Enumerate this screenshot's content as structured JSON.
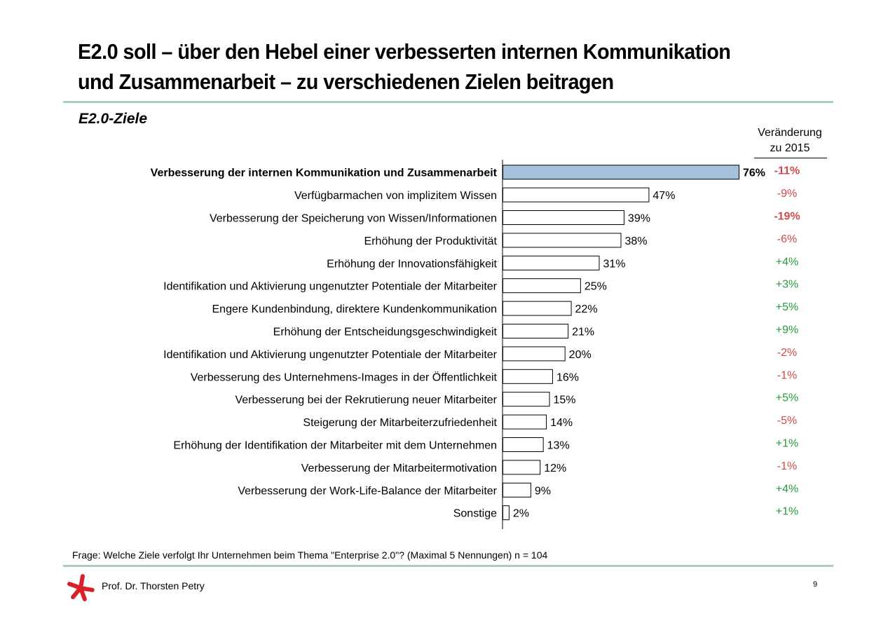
{
  "slide": {
    "title_line1": "E2.0 soll – über den Hebel einer verbesserten internen Kommunikation",
    "title_line2": "und Zusammenarbeit – zu verschiedenen Zielen beitragen",
    "subtitle": "E2.0-Ziele",
    "change_header_line1": "Veränderung",
    "change_header_line2": "zu 2015",
    "question": "Frage: Welche Ziele verfolgt Ihr Unternehmen beim Thema \"Enterprise 2.0\"?  (Maximal 5 Nennungen)  n = 104",
    "author": "Prof. Dr. Thorsten Petry",
    "page_number": "9"
  },
  "colors": {
    "highlight_bar": "#a4c2dc",
    "bar_fill": "#ffffff",
    "rule": "#a9cdbf",
    "negative": "#d0494b",
    "positive": "#2a9a3e",
    "logo": "#d9202a"
  },
  "chart_data": {
    "type": "bar",
    "orientation": "horizontal",
    "title": "E2.0-Ziele",
    "unit": "%",
    "categories": [
      "Verbesserung der internen Kommunikation und Zusammenarbeit",
      "Verfügbarmachen von implizitem Wissen",
      "Verbesserung der Speicherung von Wissen/Informationen",
      "Erhöhung der Produktivität",
      "Erhöhung der Innovationsfähigkeit",
      "Identifikation und Aktivierung ungenutzter Potentiale der Mitarbeiter",
      "Engere Kundenbindung, direktere Kundenkommunikation",
      "Erhöhung der Entscheidungsgeschwindigkeit",
      "Identifikation und Aktivierung ungenutzter Potentiale der Mitarbeiter",
      "Verbesserung des Unternehmens-Images in der Öffentlichkeit",
      "Verbesserung bei der Rekrutierung neuer Mitarbeiter",
      "Steigerung der Mitarbeiterzufriedenheit",
      "Erhöhung der Identifikation der Mitarbeiter mit dem Unternehmen",
      "Verbesserung der Mitarbeitermotivation",
      "Verbesserung der Work-Life-Balance der Mitarbeiter",
      "Sonstige"
    ],
    "values": [
      76,
      47,
      39,
      38,
      31,
      25,
      22,
      21,
      20,
      16,
      15,
      14,
      13,
      12,
      9,
      2
    ],
    "value_labels": [
      "76%",
      "47%",
      "39%",
      "38%",
      "31%",
      "25%",
      "22%",
      "21%",
      "20%",
      "16%",
      "15%",
      "14%",
      "13%",
      "12%",
      "9%",
      "2%"
    ],
    "change_labels": [
      "-11%",
      "-9%",
      "-19%",
      "-6%",
      "+4%",
      "+3%",
      "+5%",
      "+9%",
      "-2%",
      "-1%",
      "+5%",
      "-5%",
      "+1%",
      "-1%",
      "+4%",
      "+1%"
    ],
    "change_values": [
      -11,
      -9,
      -19,
      -6,
      4,
      3,
      5,
      9,
      -2,
      -1,
      5,
      -5,
      1,
      -1,
      4,
      1
    ],
    "highlighted_index": 0,
    "bold_change_indices": [
      0,
      2
    ],
    "xlim": [
      0,
      76
    ]
  }
}
